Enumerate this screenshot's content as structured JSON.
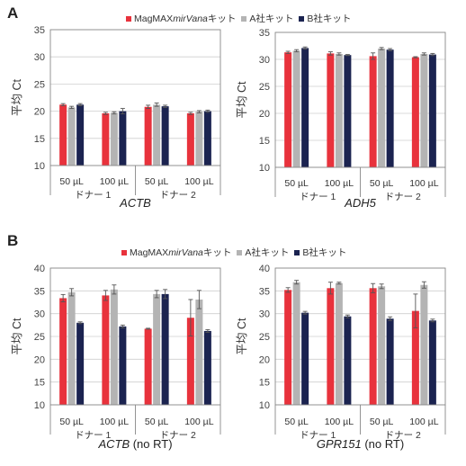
{
  "panels": {
    "a": "A",
    "b": "B"
  },
  "legend": {
    "a": [
      {
        "name_pre": "MagMAX ",
        "name_em": "mirVana",
        "name_post": "キット",
        "color": "#e8323c"
      },
      {
        "name_pre": "A社キット",
        "name_em": "",
        "name_post": "",
        "color": "#b4b4b4"
      },
      {
        "name_pre": "B社キット",
        "name_em": "",
        "name_post": "",
        "color": "#1b2350"
      }
    ],
    "b": [
      {
        "name_pre": "MagMAX ",
        "name_em": "mirVana",
        "name_post": "キット",
        "color": "#e8323c"
      },
      {
        "name_pre": "A社キット",
        "name_em": "",
        "name_post": "",
        "color": "#b4b4b4"
      },
      {
        "name_pre": "B社キット",
        "name_em": "",
        "name_post": "",
        "color": "#1b2350"
      }
    ]
  },
  "chart_data": [
    {
      "type": "bar",
      "ylabel": "平均 Ct",
      "ylabel_sub": "t",
      "title_em": "ACTB",
      "title_rest": "",
      "ylim": [
        10,
        35
      ],
      "yticks": [
        10,
        15,
        20,
        25,
        30,
        35
      ],
      "grid": true,
      "categories": [
        "50 µL",
        "100 µL",
        "50 µL",
        "100 µL"
      ],
      "groups": [
        "ドナー 1",
        "ドナー 2"
      ],
      "series": [
        {
          "values": [
            21.2,
            19.6,
            20.8,
            19.6
          ],
          "errors": [
            0.2,
            0.2,
            0.3,
            0.2
          ]
        },
        {
          "values": [
            20.7,
            19.7,
            21.2,
            19.9
          ],
          "errors": [
            0.2,
            0.2,
            0.3,
            0.2
          ]
        },
        {
          "values": [
            21.2,
            20.0,
            20.9,
            20.0
          ],
          "errors": [
            0.2,
            0.5,
            0.2,
            0.2
          ]
        }
      ]
    },
    {
      "type": "bar",
      "ylabel": "平均 Ct",
      "ylabel_sub": "t",
      "title_em": "ADH5",
      "title_rest": "",
      "ylim": [
        10,
        35
      ],
      "yticks": [
        10,
        15,
        20,
        25,
        30,
        35
      ],
      "grid": true,
      "categories": [
        "50 µL",
        "100 µL",
        "50 µL",
        "100 µL"
      ],
      "groups": [
        "ドナー 1",
        "ドナー 2"
      ],
      "series": [
        {
          "values": [
            31.3,
            31.1,
            30.6,
            30.4
          ],
          "errors": [
            0.2,
            0.3,
            0.6,
            0.1
          ]
        },
        {
          "values": [
            31.6,
            31.0,
            32.0,
            31.0
          ],
          "errors": [
            0.2,
            0.2,
            0.2,
            0.2
          ]
        },
        {
          "values": [
            32.1,
            30.8,
            31.8,
            30.9
          ],
          "errors": [
            0.2,
            0.1,
            0.2,
            0.2
          ]
        }
      ]
    },
    {
      "type": "bar",
      "ylabel": "平均 Ct",
      "ylabel_sub": "t",
      "title_em": "ACTB",
      "title_rest": " (no RT)",
      "ylim": [
        10,
        40
      ],
      "yticks": [
        10,
        15,
        20,
        25,
        30,
        35,
        40
      ],
      "grid": true,
      "categories": [
        "50 µL",
        "100 µL",
        "50 µL",
        "100 µL"
      ],
      "groups": [
        "ドナー 1",
        "ドナー 2"
      ],
      "series": [
        {
          "values": [
            33.4,
            34.0,
            26.7,
            29.1
          ],
          "errors": [
            0.8,
            1.1,
            0.1,
            4.0
          ]
        },
        {
          "values": [
            34.7,
            35.3,
            34.3,
            33.1
          ],
          "errors": [
            0.8,
            1.0,
            0.8,
            2.0
          ]
        },
        {
          "values": [
            28.0,
            27.2,
            34.3,
            26.2
          ],
          "errors": [
            0.2,
            0.3,
            1.0,
            0.3
          ]
        }
      ]
    },
    {
      "type": "bar",
      "ylabel": "平均 Ct",
      "ylabel_sub": "t",
      "title_em": "GPR151",
      "title_rest": " (no RT)",
      "ylim": [
        10,
        40
      ],
      "yticks": [
        10,
        15,
        20,
        25,
        30,
        35,
        40
      ],
      "grid": true,
      "categories": [
        "50 µL",
        "100 µL",
        "50 µL",
        "100 µL"
      ],
      "groups": [
        "ドナー 1",
        "ドナー 2"
      ],
      "series": [
        {
          "values": [
            35.2,
            35.6,
            35.6,
            30.6
          ],
          "errors": [
            0.5,
            1.3,
            1.0,
            3.7
          ]
        },
        {
          "values": [
            36.9,
            36.7,
            36.0,
            36.3
          ],
          "errors": [
            0.4,
            0.2,
            0.5,
            0.7
          ]
        },
        {
          "values": [
            30.2,
            29.4,
            28.9,
            28.5
          ],
          "errors": [
            0.3,
            0.3,
            0.4,
            0.3
          ]
        }
      ]
    }
  ]
}
